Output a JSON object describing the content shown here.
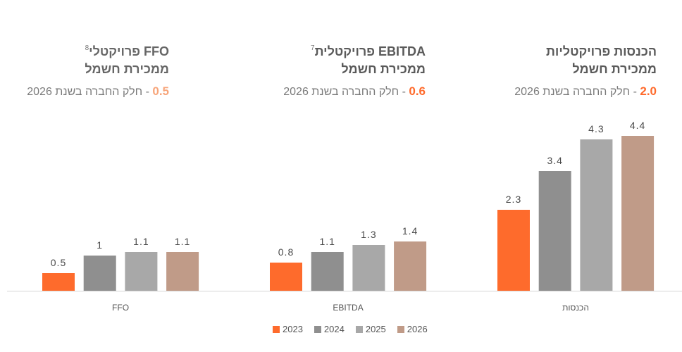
{
  "headers": [
    {
      "title": "הכנסות פרויקטליות",
      "subtitle": "ממכירת חשמל",
      "share_value": "2.0",
      "share_text": "- חלק החברה בשנת 2026",
      "share_color": "#ff6a2b"
    },
    {
      "title": "EBITDA פרויקטלית",
      "footnote": "7",
      "subtitle": "ממכירת חשמל",
      "share_value": "0.6",
      "share_text": "- חלק החברה בשנת 2026",
      "share_color": "#ff6a2b"
    },
    {
      "title": "FFO פרויקטלי",
      "footnote": "8",
      "subtitle": "ממכירת חשמל",
      "share_value": "0.5",
      "share_text": "- חלק החברה בשנת 2026",
      "share_color": "#f7a57a"
    }
  ],
  "chart_data": {
    "type": "bar",
    "categories": [
      "FFO",
      "EBITDA",
      "הכנסות"
    ],
    "series": [
      {
        "name": "2023",
        "color": "#fe6b2c",
        "values": [
          0.5,
          0.8,
          2.3
        ]
      },
      {
        "name": "2024",
        "color": "#8f8f8f",
        "values": [
          1,
          1.1,
          3.4
        ]
      },
      {
        "name": "2025",
        "color": "#a8a8a8",
        "values": [
          1.1,
          1.3,
          4.3
        ]
      },
      {
        "name": "2026",
        "color": "#c09b88",
        "values": [
          1.1,
          1.4,
          4.4
        ]
      }
    ],
    "data_labels": true,
    "grid": false,
    "legend": "bottom"
  }
}
